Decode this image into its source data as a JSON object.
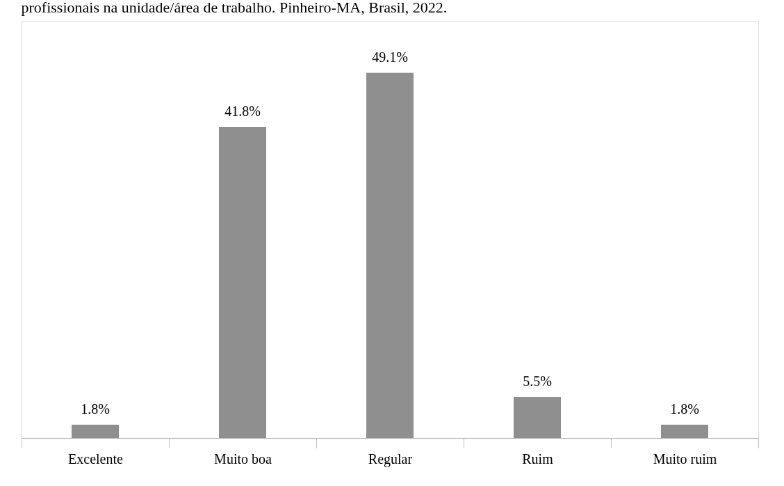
{
  "chart_data": {
    "type": "bar",
    "title": "profissionais na unidade/área de trabalho. Pinheiro-MA, Brasil, 2022.",
    "categories": [
      "Excelente",
      "Muito boa",
      "Regular",
      "Ruim",
      "Muito ruim"
    ],
    "values": [
      1.8,
      41.8,
      49.1,
      5.5,
      1.8
    ],
    "value_labels": [
      "1.8%",
      "41.8%",
      "49.1%",
      "5.5%",
      "1.8%"
    ],
    "color": "#8f8f8f",
    "grid": false
  }
}
